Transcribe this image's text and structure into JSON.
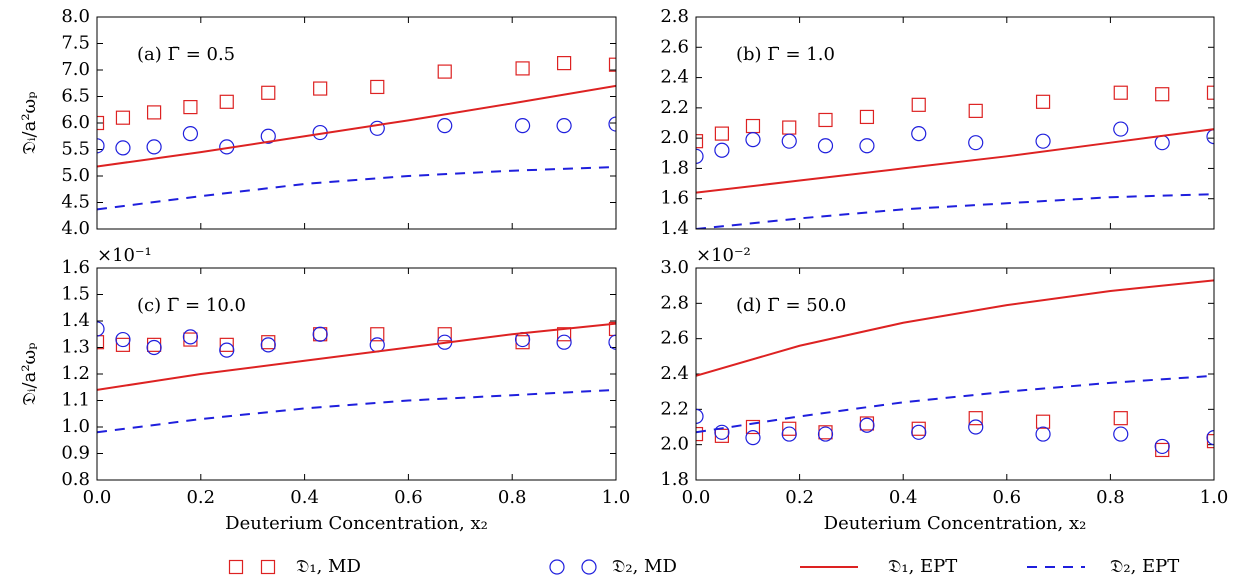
{
  "chart_data": [
    {
      "type": "scatter-line",
      "annotation": "(a) Γ̄ = 0.5",
      "ylabel": "𝔇ᵢ/a²ωₚ",
      "xlim": [
        0,
        1
      ],
      "xticks": [
        0,
        0.2,
        0.4,
        0.6,
        0.8,
        1
      ],
      "ylim": [
        4,
        8
      ],
      "yticks": [
        {
          "value": 4,
          "label": "4.0"
        },
        {
          "value": 4.5,
          "label": "4.5"
        },
        {
          "value": 5,
          "label": "5.0"
        },
        {
          "value": 5.5,
          "label": "5.5"
        },
        {
          "value": 6,
          "label": "6.0"
        },
        {
          "value": 6.5,
          "label": "6.5"
        },
        {
          "value": 7,
          "label": "7.0"
        },
        {
          "value": 7.5,
          "label": "7.5"
        },
        {
          "value": 8,
          "label": "8.0"
        }
      ],
      "series": [
        {
          "name": "𝔇₁, MD",
          "color": "#dd2222",
          "marker": "square",
          "x": [
            0,
            0.05,
            0.11,
            0.18,
            0.25,
            0.33,
            0.43,
            0.54,
            0.67,
            0.82,
            0.9,
            1
          ],
          "values": [
            6.0,
            6.1,
            6.2,
            6.3,
            6.4,
            6.57,
            6.65,
            6.68,
            6.97,
            7.03,
            7.13,
            7.1
          ]
        },
        {
          "name": "𝔇₂, MD",
          "color": "#1f1fdd",
          "marker": "circle",
          "x": [
            0,
            0.05,
            0.11,
            0.18,
            0.25,
            0.33,
            0.43,
            0.54,
            0.67,
            0.82,
            0.9,
            1
          ],
          "values": [
            5.57,
            5.53,
            5.55,
            5.8,
            5.55,
            5.75,
            5.82,
            5.9,
            5.95,
            5.95,
            5.95,
            5.98
          ]
        },
        {
          "name": "𝔇₁, EPT",
          "color": "#dd2222",
          "linestyle": "solid",
          "x": [
            0,
            0.2,
            0.4,
            0.6,
            0.8,
            1
          ],
          "values": [
            5.18,
            5.45,
            5.75,
            6.05,
            6.37,
            6.7
          ]
        },
        {
          "name": "𝔇₂, EPT",
          "color": "#1f1fdd",
          "linestyle": "dashed",
          "x": [
            0,
            0.2,
            0.4,
            0.6,
            0.8,
            1
          ],
          "values": [
            4.37,
            4.62,
            4.85,
            5.0,
            5.1,
            5.17
          ]
        }
      ]
    },
    {
      "type": "scatter-line",
      "annotation": "(b) Γ̄ = 1.0",
      "xlim": [
        0,
        1
      ],
      "xticks": [
        0,
        0.2,
        0.4,
        0.6,
        0.8,
        1
      ],
      "ylim": [
        1.4,
        2.8
      ],
      "yticks": [
        {
          "value": 1.4,
          "label": "1.4"
        },
        {
          "value": 1.6,
          "label": "1.6"
        },
        {
          "value": 1.8,
          "label": "1.8"
        },
        {
          "value": 2,
          "label": "2.0"
        },
        {
          "value": 2.2,
          "label": "2.2"
        },
        {
          "value": 2.4,
          "label": "2.4"
        },
        {
          "value": 2.6,
          "label": "2.6"
        },
        {
          "value": 2.8,
          "label": "2.8"
        }
      ],
      "series": [
        {
          "color": "#dd2222",
          "marker": "square",
          "x": [
            0,
            0.05,
            0.11,
            0.18,
            0.25,
            0.33,
            0.43,
            0.54,
            0.67,
            0.82,
            0.9,
            1
          ],
          "values": [
            1.98,
            2.03,
            2.08,
            2.07,
            2.12,
            2.14,
            2.22,
            2.18,
            2.24,
            2.3,
            2.29,
            2.3
          ]
        },
        {
          "color": "#1f1fdd",
          "marker": "circle",
          "x": [
            0,
            0.05,
            0.11,
            0.18,
            0.25,
            0.33,
            0.43,
            0.54,
            0.67,
            0.82,
            0.9,
            1
          ],
          "values": [
            1.88,
            1.92,
            1.99,
            1.98,
            1.95,
            1.95,
            2.03,
            1.97,
            1.98,
            2.06,
            1.97,
            2.01
          ]
        },
        {
          "color": "#dd2222",
          "linestyle": "solid",
          "x": [
            0,
            0.2,
            0.4,
            0.6,
            0.8,
            1
          ],
          "values": [
            1.64,
            1.72,
            1.8,
            1.88,
            1.97,
            2.06
          ]
        },
        {
          "color": "#1f1fdd",
          "linestyle": "dashed",
          "x": [
            0,
            0.2,
            0.4,
            0.6,
            0.8,
            1
          ],
          "values": [
            1.4,
            1.47,
            1.53,
            1.57,
            1.61,
            1.63
          ]
        }
      ]
    },
    {
      "type": "scatter-line",
      "annotation": "(c) Γ̄ = 10.0",
      "offset_text": "×10⁻¹",
      "ylabel": "𝔇ᵢ/a²ωₚ",
      "xlabel": "Deuterium Concentration, x₂",
      "xlim": [
        0,
        1
      ],
      "xticks": [
        {
          "value": 0,
          "label": "0.0"
        },
        {
          "value": 0.2,
          "label": "0.2"
        },
        {
          "value": 0.4,
          "label": "0.4"
        },
        {
          "value": 0.6,
          "label": "0.6"
        },
        {
          "value": 0.8,
          "label": "0.8"
        },
        {
          "value": 1,
          "label": "1.0"
        }
      ],
      "ylim": [
        0.8,
        1.6
      ],
      "yticks": [
        {
          "value": 0.8,
          "label": "0.8"
        },
        {
          "value": 0.9,
          "label": "0.9"
        },
        {
          "value": 1,
          "label": "1.0"
        },
        {
          "value": 1.1,
          "label": "1.1"
        },
        {
          "value": 1.2,
          "label": "1.2"
        },
        {
          "value": 1.3,
          "label": "1.3"
        },
        {
          "value": 1.4,
          "label": "1.4"
        },
        {
          "value": 1.5,
          "label": "1.5"
        },
        {
          "value": 1.6,
          "label": "1.6"
        }
      ],
      "series": [
        {
          "color": "#dd2222",
          "marker": "square",
          "x": [
            0,
            0.05,
            0.11,
            0.18,
            0.25,
            0.33,
            0.43,
            0.54,
            0.67,
            0.82,
            0.9,
            1
          ],
          "values": [
            1.32,
            1.31,
            1.31,
            1.33,
            1.31,
            1.32,
            1.35,
            1.35,
            1.35,
            1.32,
            1.35,
            1.37
          ]
        },
        {
          "color": "#1f1fdd",
          "marker": "circle",
          "x": [
            0,
            0.05,
            0.11,
            0.18,
            0.25,
            0.33,
            0.43,
            0.54,
            0.67,
            0.82,
            0.9,
            1
          ],
          "values": [
            1.37,
            1.33,
            1.3,
            1.34,
            1.29,
            1.31,
            1.35,
            1.31,
            1.32,
            1.33,
            1.32,
            1.32
          ]
        },
        {
          "color": "#dd2222",
          "linestyle": "solid",
          "x": [
            0,
            0.2,
            0.4,
            0.6,
            0.8,
            1
          ],
          "values": [
            1.14,
            1.2,
            1.25,
            1.3,
            1.35,
            1.39
          ]
        },
        {
          "color": "#1f1fdd",
          "linestyle": "dashed",
          "x": [
            0,
            0.2,
            0.4,
            0.6,
            0.8,
            1
          ],
          "values": [
            0.98,
            1.03,
            1.07,
            1.1,
            1.12,
            1.14
          ]
        }
      ]
    },
    {
      "type": "scatter-line",
      "annotation": "(d) Γ̄ = 50.0",
      "offset_text": "×10⁻²",
      "xlabel": "Deuterium Concentration, x₂",
      "xlim": [
        0,
        1
      ],
      "xticks": [
        {
          "value": 0,
          "label": "0.0"
        },
        {
          "value": 0.2,
          "label": "0.2"
        },
        {
          "value": 0.4,
          "label": "0.4"
        },
        {
          "value": 0.6,
          "label": "0.6"
        },
        {
          "value": 0.8,
          "label": "0.8"
        },
        {
          "value": 1,
          "label": "1.0"
        }
      ],
      "ylim": [
        1.8,
        3
      ],
      "yticks": [
        {
          "value": 1.8,
          "label": "1.8"
        },
        {
          "value": 2,
          "label": "2.0"
        },
        {
          "value": 2.2,
          "label": "2.2"
        },
        {
          "value": 2.4,
          "label": "2.4"
        },
        {
          "value": 2.6,
          "label": "2.6"
        },
        {
          "value": 2.8,
          "label": "2.8"
        },
        {
          "value": 3,
          "label": "3.0"
        }
      ],
      "series": [
        {
          "color": "#dd2222",
          "marker": "square",
          "x": [
            0,
            0.05,
            0.11,
            0.18,
            0.25,
            0.33,
            0.43,
            0.54,
            0.67,
            0.82,
            0.9,
            1
          ],
          "values": [
            2.06,
            2.05,
            2.1,
            2.09,
            2.07,
            2.12,
            2.09,
            2.15,
            2.13,
            2.15,
            1.97,
            2.02
          ]
        },
        {
          "color": "#1f1fdd",
          "marker": "circle",
          "x": [
            0,
            0.05,
            0.11,
            0.18,
            0.25,
            0.33,
            0.43,
            0.54,
            0.67,
            0.82,
            0.9,
            1
          ],
          "values": [
            2.16,
            2.07,
            2.04,
            2.06,
            2.06,
            2.11,
            2.07,
            2.1,
            2.06,
            2.06,
            1.99,
            2.04
          ]
        },
        {
          "color": "#dd2222",
          "linestyle": "solid",
          "x": [
            0,
            0.2,
            0.4,
            0.6,
            0.8,
            1
          ],
          "values": [
            2.39,
            2.56,
            2.69,
            2.79,
            2.87,
            2.93
          ]
        },
        {
          "color": "#1f1fdd",
          "linestyle": "dashed",
          "x": [
            0,
            0.2,
            0.4,
            0.6,
            0.8,
            1
          ],
          "values": [
            2.07,
            2.16,
            2.24,
            2.3,
            2.35,
            2.39
          ]
        }
      ]
    }
  ]
}
